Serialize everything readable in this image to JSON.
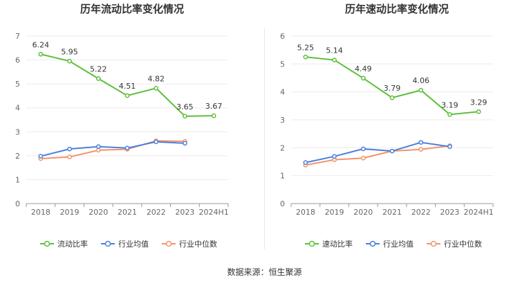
{
  "chart_data": [
    {
      "type": "line",
      "title": "历年流动比率变化情况",
      "categories": [
        "2018",
        "2019",
        "2020",
        "2021",
        "2022",
        "2023",
        "2024H1"
      ],
      "ylim": [
        0,
        7
      ],
      "yticks": [
        0,
        1,
        2,
        3,
        4,
        5,
        6,
        7
      ],
      "grid": true,
      "legend_position": "bottom",
      "series": [
        {
          "name": "流动比率",
          "color": "#5cbf3a",
          "values": [
            6.24,
            5.95,
            5.22,
            4.51,
            4.82,
            3.65,
            3.67
          ],
          "labels": [
            "6.24",
            "5.95",
            "5.22",
            "4.51",
            "4.82",
            "3.65",
            "3.67"
          ]
        },
        {
          "name": "行业均值",
          "color": "#4a7fdc",
          "values": [
            1.98,
            2.28,
            2.38,
            2.32,
            2.58,
            2.52,
            null
          ]
        },
        {
          "name": "行业中位数",
          "color": "#f4926b",
          "values": [
            1.88,
            1.95,
            2.23,
            2.27,
            2.62,
            2.6,
            null
          ]
        }
      ]
    },
    {
      "type": "line",
      "title": "历年速动比率变化情况",
      "categories": [
        "2018",
        "2019",
        "2020",
        "2021",
        "2022",
        "2023",
        "2024H1"
      ],
      "ylim": [
        0,
        6
      ],
      "yticks": [
        0,
        1,
        2,
        3,
        4,
        5,
        6
      ],
      "grid": true,
      "legend_position": "bottom",
      "series": [
        {
          "name": "速动比率",
          "color": "#5cbf3a",
          "values": [
            5.25,
            5.14,
            4.49,
            3.79,
            4.06,
            3.19,
            3.29
          ],
          "labels": [
            "5.25",
            "5.14",
            "4.49",
            "3.79",
            "4.06",
            "3.19",
            "3.29"
          ]
        },
        {
          "name": "行业均值",
          "color": "#4a7fdc",
          "values": [
            1.47,
            1.69,
            1.96,
            1.88,
            2.19,
            2.04,
            null
          ]
        },
        {
          "name": "行业中位数",
          "color": "#f4926b",
          "values": [
            1.38,
            1.57,
            1.63,
            1.88,
            1.94,
            2.07,
            null
          ]
        }
      ]
    }
  ],
  "footer": {
    "source": "数据来源：恒生聚源"
  }
}
